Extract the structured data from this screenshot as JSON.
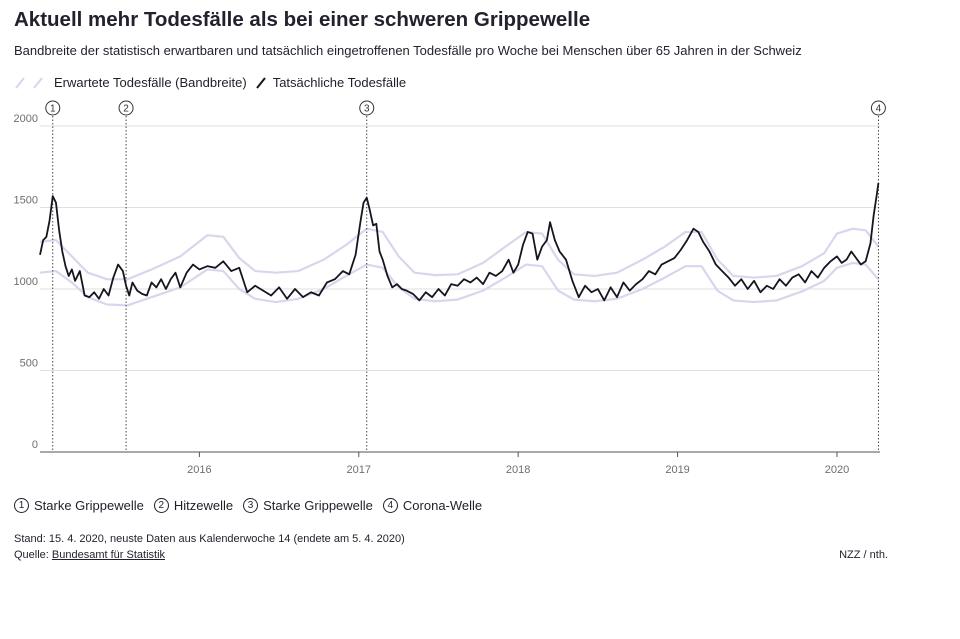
{
  "header": {
    "title": "Aktuell mehr Todesfälle als bei einer schweren Grippewelle",
    "subtitle": "Bandbreite der statistisch erwartbaren und tatsächlich eingetroffenen Todesfälle pro Woche bei Menschen über 65 Jahren in der Schweiz"
  },
  "legend": {
    "expected_label": "Erwartete Todesfälle (Bandbreite)",
    "actual_label": "Tatsächliche Todesfälle"
  },
  "annotations": [
    {
      "num": "1",
      "label": "Starke Grippewelle",
      "x": 2015.08
    },
    {
      "num": "2",
      "label": "Hitzewelle",
      "x": 2015.54
    },
    {
      "num": "3",
      "label": "Starke Grippewelle",
      "x": 2017.05
    },
    {
      "num": "4",
      "label": "Corona-Welle",
      "x": 2020.26
    }
  ],
  "footer": {
    "stand": "Stand: 15. 4. 2020, neuste Daten aus Kalenderwoche 14 (endete am 5. 4. 2020)",
    "source_prefix": "Quelle: ",
    "source_link": "Bundesamt für Statistik",
    "credit": "NZZ / nth."
  },
  "colors": {
    "actual": "#15151f",
    "band": "#d6d7ec",
    "grid": "#d4d4d4",
    "axis": "#555555",
    "text": "#22222e",
    "muted": "#6e6e6e"
  },
  "chart_data": {
    "type": "line",
    "xlim": [
      2015.0,
      2020.27
    ],
    "ylim": [
      0,
      2000
    ],
    "yticks": [
      0,
      500,
      1000,
      1500,
      2000
    ],
    "xticks": [
      {
        "value": 2016,
        "label": "2016"
      },
      {
        "value": 2017,
        "label": "2017"
      },
      {
        "value": 2018,
        "label": "2018"
      },
      {
        "value": 2019,
        "label": "2019"
      },
      {
        "value": 2020,
        "label": "2020"
      }
    ],
    "grid": true,
    "band": {
      "name": "Erwartete Todesfälle (Bandbreite)",
      "x": [
        2015.0,
        2015.1,
        2015.2,
        2015.3,
        2015.42,
        2015.55,
        2015.7,
        2015.88,
        2016.05,
        2016.15,
        2016.25,
        2016.35,
        2016.48,
        2016.62,
        2016.78,
        2016.92,
        2017.05,
        2017.15,
        2017.25,
        2017.35,
        2017.48,
        2017.62,
        2017.78,
        2017.92,
        2018.05,
        2018.15,
        2018.25,
        2018.35,
        2018.48,
        2018.62,
        2018.78,
        2018.92,
        2019.05,
        2019.15,
        2019.25,
        2019.35,
        2019.48,
        2019.62,
        2019.78,
        2019.92,
        2020.0,
        2020.1,
        2020.18,
        2020.26
      ],
      "upper": [
        1290,
        1300,
        1200,
        1100,
        1060,
        1060,
        1120,
        1200,
        1330,
        1320,
        1190,
        1110,
        1100,
        1110,
        1180,
        1270,
        1370,
        1350,
        1200,
        1100,
        1085,
        1090,
        1160,
        1260,
        1350,
        1340,
        1180,
        1090,
        1080,
        1100,
        1180,
        1260,
        1350,
        1350,
        1180,
        1080,
        1070,
        1080,
        1140,
        1220,
        1340,
        1370,
        1360,
        1260
      ],
      "lower": [
        1100,
        1110,
        1040,
        950,
        905,
        900,
        950,
        1010,
        1120,
        1110,
        1000,
        940,
        920,
        940,
        1000,
        1080,
        1150,
        1130,
        1010,
        940,
        925,
        935,
        990,
        1070,
        1150,
        1140,
        990,
        935,
        925,
        940,
        1000,
        1070,
        1140,
        1140,
        990,
        930,
        920,
        930,
        985,
        1050,
        1130,
        1160,
        1150,
        1060
      ]
    },
    "series": [
      {
        "name": "Tatsächliche Todesfälle",
        "x": [
          2015.0,
          2015.02,
          2015.04,
          2015.06,
          2015.08,
          2015.1,
          2015.12,
          2015.14,
          2015.16,
          2015.18,
          2015.2,
          2015.22,
          2015.25,
          2015.28,
          2015.31,
          2015.34,
          2015.37,
          2015.4,
          2015.43,
          2015.46,
          2015.49,
          2015.52,
          2015.54,
          2015.56,
          2015.58,
          2015.61,
          2015.64,
          2015.67,
          2015.7,
          2015.73,
          2015.76,
          2015.79,
          2015.82,
          2015.85,
          2015.88,
          2015.92,
          2015.96,
          2016.0,
          2016.05,
          2016.1,
          2016.15,
          2016.2,
          2016.25,
          2016.3,
          2016.35,
          2016.4,
          2016.45,
          2016.5,
          2016.55,
          2016.6,
          2016.65,
          2016.7,
          2016.75,
          2016.8,
          2016.85,
          2016.9,
          2016.94,
          2016.98,
          2017.01,
          2017.03,
          2017.05,
          2017.07,
          2017.09,
          2017.11,
          2017.13,
          2017.15,
          2017.18,
          2017.21,
          2017.24,
          2017.27,
          2017.3,
          2017.34,
          2017.38,
          2017.42,
          2017.46,
          2017.5,
          2017.54,
          2017.58,
          2017.62,
          2017.66,
          2017.7,
          2017.74,
          2017.78,
          2017.82,
          2017.86,
          2017.9,
          2017.94,
          2017.97,
          2018.0,
          2018.03,
          2018.06,
          2018.09,
          2018.12,
          2018.15,
          2018.18,
          2018.2,
          2018.23,
          2018.26,
          2018.3,
          2018.34,
          2018.38,
          2018.42,
          2018.46,
          2018.5,
          2018.54,
          2018.58,
          2018.62,
          2018.66,
          2018.7,
          2018.74,
          2018.78,
          2018.82,
          2018.86,
          2018.9,
          2018.94,
          2018.98,
          2019.02,
          2019.06,
          2019.1,
          2019.13,
          2019.16,
          2019.2,
          2019.24,
          2019.28,
          2019.32,
          2019.36,
          2019.4,
          2019.44,
          2019.48,
          2019.52,
          2019.56,
          2019.6,
          2019.64,
          2019.68,
          2019.72,
          2019.76,
          2019.8,
          2019.84,
          2019.88,
          2019.92,
          2019.96,
          2020.0,
          2020.03,
          2020.06,
          2020.09,
          2020.12,
          2020.15,
          2020.18,
          2020.21,
          2020.23,
          2020.25,
          2020.26
        ],
        "values": [
          1210,
          1300,
          1320,
          1420,
          1570,
          1530,
          1360,
          1230,
          1140,
          1080,
          1120,
          1050,
          1110,
          960,
          950,
          980,
          940,
          1000,
          960,
          1070,
          1150,
          1110,
          1020,
          960,
          1040,
          990,
          970,
          960,
          1040,
          1010,
          1060,
          1000,
          1060,
          1100,
          1010,
          1100,
          1150,
          1120,
          1140,
          1130,
          1170,
          1110,
          1130,
          980,
          1020,
          990,
          960,
          1010,
          940,
          1000,
          950,
          980,
          960,
          1040,
          1060,
          1110,
          1090,
          1210,
          1410,
          1530,
          1560,
          1480,
          1390,
          1400,
          1230,
          1180,
          1080,
          1010,
          1030,
          1000,
          990,
          970,
          930,
          980,
          950,
          1000,
          960,
          1030,
          1020,
          1060,
          1040,
          1070,
          1030,
          1100,
          1080,
          1110,
          1180,
          1100,
          1150,
          1270,
          1350,
          1340,
          1180,
          1260,
          1300,
          1410,
          1300,
          1230,
          1180,
          1050,
          950,
          1020,
          980,
          1000,
          930,
          1010,
          950,
          1040,
          990,
          1030,
          1060,
          1110,
          1090,
          1150,
          1170,
          1190,
          1240,
          1300,
          1370,
          1350,
          1290,
          1230,
          1150,
          1110,
          1070,
          1020,
          1060,
          1000,
          1050,
          980,
          1020,
          1000,
          1060,
          1020,
          1070,
          1090,
          1040,
          1110,
          1070,
          1130,
          1170,
          1200,
          1160,
          1180,
          1230,
          1190,
          1150,
          1170,
          1280,
          1450,
          1580,
          1650
        ]
      }
    ]
  }
}
